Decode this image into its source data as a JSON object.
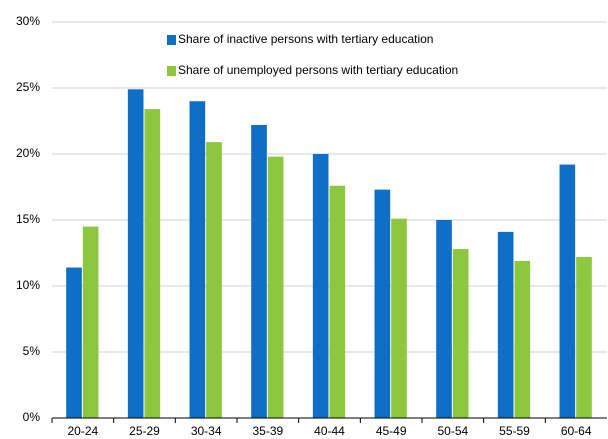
{
  "chart_data": {
    "type": "bar",
    "categories": [
      "20-24",
      "25-29",
      "30-34",
      "35-39",
      "40-44",
      "45-49",
      "50-54",
      "55-59",
      "60-64"
    ],
    "series": [
      {
        "name": "Share of inactive persons with tertiary education",
        "color": "#0f6fc6",
        "values": [
          11.4,
          24.9,
          24.0,
          22.2,
          20.0,
          17.3,
          15.0,
          14.1,
          19.2
        ]
      },
      {
        "name": "Share of unemployed persons with tertiary education",
        "color": "#8dc63f",
        "values": [
          14.5,
          23.4,
          20.9,
          19.8,
          17.6,
          15.1,
          12.8,
          11.9,
          12.2
        ]
      }
    ],
    "ylim": [
      0,
      30
    ],
    "yticks": [
      {
        "value": 0,
        "label": "0%"
      },
      {
        "value": 5,
        "label": "5%"
      },
      {
        "value": 10,
        "label": "10%"
      },
      {
        "value": 15,
        "label": "15%"
      },
      {
        "value": 20,
        "label": "20%"
      },
      {
        "value": 25,
        "label": "25%"
      },
      {
        "value": 30,
        "label": "30%"
      }
    ],
    "grid": true
  }
}
